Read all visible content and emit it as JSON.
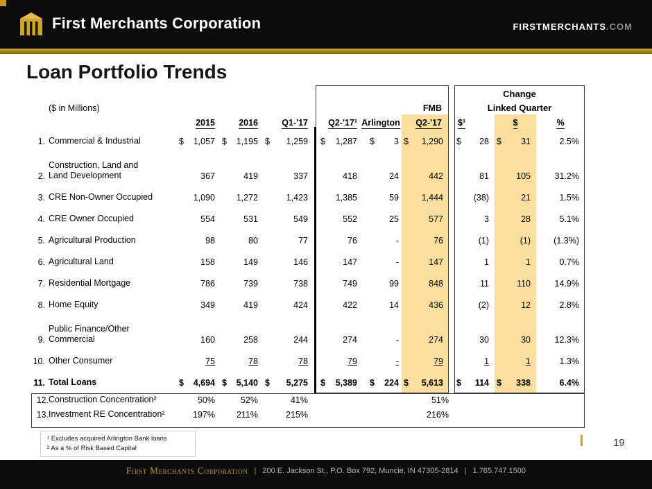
{
  "header": {
    "logo_text": "First Merchants Corporation",
    "site": "FIRSTMERCHANTS",
    "site_tld": ".COM"
  },
  "title": "Loan Portfolio Trends",
  "table": {
    "units_label": "($ in Millions)",
    "change_header": "Change",
    "linked_quarter_header": "Linked Quarter",
    "fmb_header": "FMB",
    "columns": [
      "2015",
      "2016",
      "Q1-'17",
      "Q2-'17¹",
      "Arlington",
      "Q2-'17",
      "$¹",
      "$",
      "%"
    ],
    "rows": [
      {
        "num": "1.",
        "label": "Commercial & Industrial",
        "values": [
          "$ 1,057",
          "$ 1,195",
          "$ 1,259",
          "$ 1,287",
          "$ 3",
          "$ 1,290",
          "$ 28",
          "$ 31",
          "2.5%"
        ]
      },
      {
        "num": "2.",
        "label": [
          "Construction, Land and",
          "Land Development"
        ],
        "values": [
          "367",
          "419",
          "337",
          "418",
          "24",
          "442",
          "81",
          "105",
          "31.2%"
        ]
      },
      {
        "num": "3.",
        "label": "CRE Non-Owner Occupied",
        "values": [
          "1,090",
          "1,272",
          "1,423",
          "1,385",
          "59",
          "1,444",
          "(38)",
          "21",
          "1.5%"
        ]
      },
      {
        "num": "4.",
        "label": "CRE Owner Occupied",
        "values": [
          "554",
          "531",
          "549",
          "552",
          "25",
          "577",
          "3",
          "28",
          "5.1%"
        ]
      },
      {
        "num": "5.",
        "label": "Agricultural Production",
        "values": [
          "98",
          "80",
          "77",
          "76",
          "-",
          "76",
          "(1)",
          "(1)",
          "(1.3%)"
        ]
      },
      {
        "num": "6.",
        "label": "Agricultural Land",
        "values": [
          "158",
          "149",
          "146",
          "147",
          "-",
          "147",
          "1",
          "1",
          "0.7%"
        ]
      },
      {
        "num": "7.",
        "label": "Residential Mortgage",
        "values": [
          "786",
          "739",
          "738",
          "749",
          "99",
          "848",
          "11",
          "110",
          "14.9%"
        ]
      },
      {
        "num": "8.",
        "label": "Home Equity",
        "values": [
          "349",
          "419",
          "424",
          "422",
          "14",
          "436",
          "(2)",
          "12",
          "2.8%"
        ]
      },
      {
        "num": "9.",
        "label": [
          "Public Finance/Other",
          "Commercial"
        ],
        "values": [
          "160",
          "258",
          "244",
          "274",
          "-",
          "274",
          "30",
          "30",
          "12.3%"
        ]
      },
      {
        "num": "10.",
        "label": "Other Consumer",
        "underline": true,
        "values": [
          "75",
          "78",
          "78",
          "79",
          "-",
          "79",
          "1",
          "1",
          "1.3%"
        ]
      },
      {
        "num": "11.",
        "label": "Total Loans",
        "total": true,
        "values": [
          "$ 4,694",
          "$ 5,140",
          "$ 5,275",
          "$ 5,389",
          "$ 224",
          "$ 5,613",
          "$ 114",
          "$ 338",
          "6.4%"
        ]
      }
    ],
    "footer_rows": [
      {
        "num": "12.",
        "label": "Construction Concentration²",
        "values": [
          "50%",
          "52%",
          "41%",
          "",
          "",
          "51%",
          "",
          "",
          ""
        ]
      },
      {
        "num": "13.",
        "label": "Investment RE Concentration²",
        "values": [
          "197%",
          "211%",
          "215%",
          "",
          "",
          "216%",
          "",
          "",
          ""
        ]
      }
    ]
  },
  "footnotes": [
    "¹ Excludes acquired Arlington Bank loans",
    "² As a % of Risk Based Capital"
  ],
  "page_number": "19",
  "footer": {
    "company": "First Merchants Corporation",
    "separator": "|",
    "address": "200 E. Jackson St., P.O. Box 792, Muncie, IN 47305-2814",
    "phone": "1.765.747.1500"
  },
  "colors": {
    "highlight": "#fbdf9e",
    "gold": "#c9a227"
  }
}
